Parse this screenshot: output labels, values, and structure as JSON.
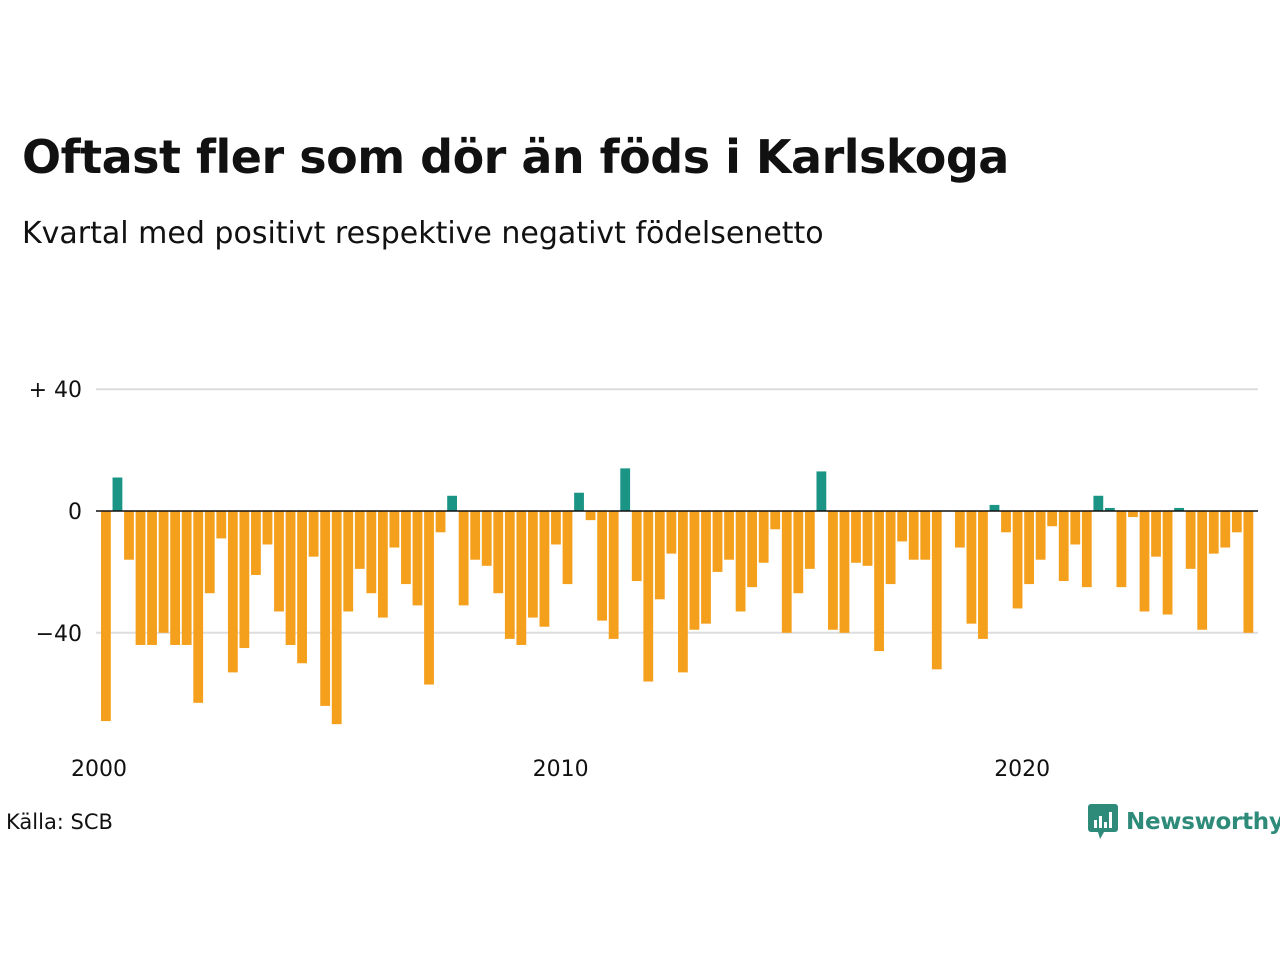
{
  "title": "Oftast fler som dör än föds i Karlskoga",
  "subtitle": "Kvartal med positivt respektive negativt födelsenetto",
  "source": "Källa: SCB",
  "brand": "Newsworthy",
  "colors": {
    "positive": "#1a9485",
    "negative": "#f5a01c",
    "grid": "#dddddd",
    "zero": "#111111"
  },
  "chart_data": {
    "type": "bar",
    "ylim": [
      -70,
      40
    ],
    "y_ticks": [
      {
        "value": 40,
        "label": "+ 40"
      },
      {
        "value": 0,
        "label": "0"
      },
      {
        "value": -40,
        "label": "−40"
      }
    ],
    "x_ticks": [
      {
        "year": 2000,
        "label": "2000"
      },
      {
        "year": 2010,
        "label": "2010"
      },
      {
        "year": 2020,
        "label": "2020"
      }
    ],
    "start_year": 2000,
    "start_quarter": 1,
    "values": [
      -69,
      11,
      -16,
      -44,
      -44,
      -40,
      -44,
      -44,
      -63,
      -27,
      -9,
      -53,
      -45,
      -21,
      -11,
      -33,
      -44,
      -50,
      -15,
      -64,
      -70,
      -33,
      -19,
      -27,
      -35,
      -12,
      -24,
      -31,
      -57,
      -7,
      5,
      -31,
      -16,
      -18,
      -27,
      -42,
      -44,
      -35,
      -38,
      -11,
      -24,
      6,
      -3,
      -36,
      -42,
      14,
      -23,
      -56,
      -29,
      -14,
      -53,
      -39,
      -37,
      -20,
      -16,
      -33,
      -25,
      -17,
      -6,
      -40,
      -27,
      -19,
      13,
      -39,
      -40,
      -17,
      -18,
      -46,
      -24,
      -10,
      -16,
      -16,
      -52,
      0,
      -12,
      -37,
      -42,
      2,
      -7,
      -32,
      -24,
      -16,
      -5,
      -23,
      -11,
      -25,
      5,
      1,
      -25,
      -2,
      -33,
      -15,
      -34,
      1,
      -19,
      -39,
      -14,
      -12,
      -7,
      -40
    ]
  }
}
